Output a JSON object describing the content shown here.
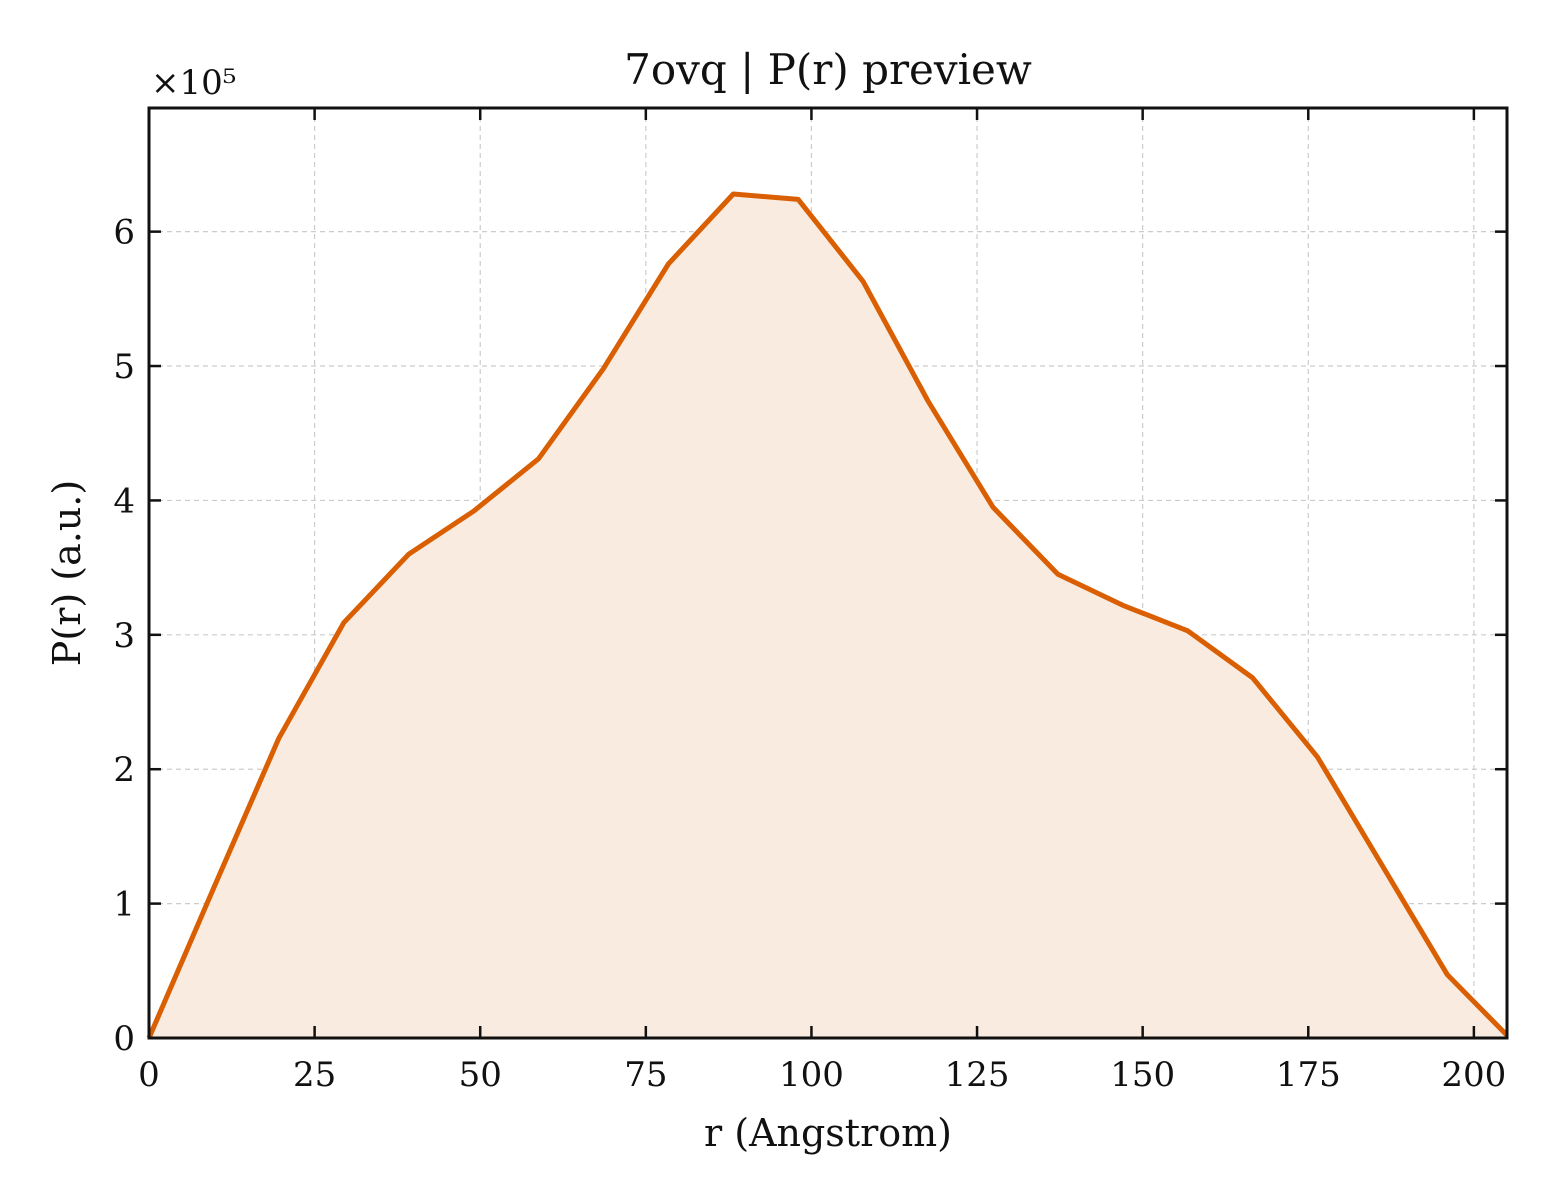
{
  "chart_data": {
    "type": "area",
    "title": "7ovq | P(r) preview",
    "xlabel": "r (Angstrom)",
    "ylabel": "P(r) (a.u.)",
    "y_offset_label": "×10⁵",
    "xlim": [
      0,
      205
    ],
    "ylim": [
      0,
      6.92
    ],
    "xticks": [
      0,
      25,
      50,
      75,
      100,
      125,
      150,
      175,
      200
    ],
    "yticks": [
      0,
      1,
      2,
      3,
      4,
      5,
      6
    ],
    "grid": true,
    "line_color": "#d95f02",
    "fill_color": "#f9ebe0",
    "x": [
      0,
      9.8,
      19.6,
      29.4,
      39.2,
      49.0,
      58.8,
      68.6,
      78.4,
      88.2,
      98.0,
      107.8,
      117.6,
      127.4,
      137.2,
      147.0,
      156.8,
      166.6,
      176.4,
      186.2,
      196.0,
      205.0
    ],
    "y": [
      0,
      1.12,
      2.23,
      3.09,
      3.6,
      3.92,
      4.31,
      4.98,
      5.76,
      6.28,
      6.24,
      5.63,
      4.74,
      3.95,
      3.45,
      3.22,
      3.03,
      2.68,
      2.09,
      1.28,
      0.47,
      0.02
    ]
  }
}
